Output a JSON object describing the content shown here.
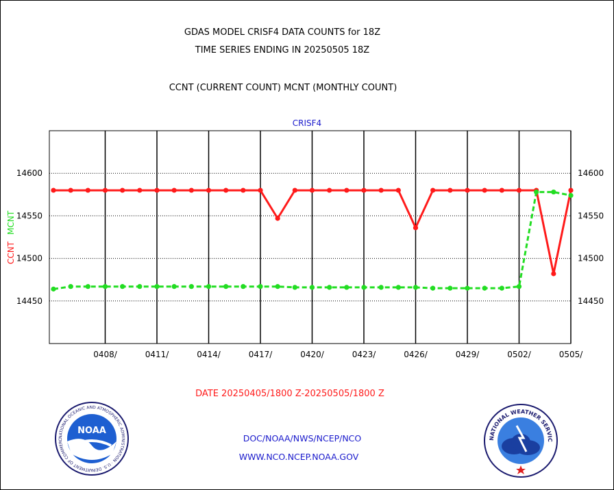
{
  "chart_data": {
    "type": "line",
    "title_lines": [
      "GDAS MODEL CRISF4 DATA COUNTS for 18Z",
      "TIME SERIES ENDING IN 20250505 18Z",
      "CCNT (CURRENT COUNT) MCNT (MONTHLY COUNT)"
    ],
    "panel_label": "CRISF4",
    "ylabel_ccnt": "CCNT",
    "ylabel_mcnt": "MCNT",
    "xlabel": "DATE 20250405/1800 Z-20250505/1800 Z",
    "ylim": [
      14400,
      14650
    ],
    "y_ticks": [
      14450,
      14500,
      14550,
      14600
    ],
    "x_tick_labels": [
      "0408/",
      "0411/",
      "0414/",
      "0417/",
      "0420/",
      "0423/",
      "0426/",
      "0429/",
      "0502/",
      "0505/"
    ],
    "x_tick_days": [
      3,
      6,
      9,
      12,
      15,
      18,
      21,
      24,
      27,
      30
    ],
    "grid": true,
    "colors": {
      "ccnt": "#ff1a1a",
      "mcnt": "#22dd22",
      "grid": "#000000",
      "footer": "#1a1acc"
    },
    "series": [
      {
        "name": "CCNT",
        "style": "solid",
        "x": [
          0,
          1,
          2,
          3,
          4,
          5,
          6,
          7,
          8,
          9,
          10,
          11,
          12,
          13,
          14,
          15,
          16,
          17,
          18,
          19,
          20,
          21,
          22,
          23,
          24,
          25,
          26,
          27,
          28,
          29,
          30
        ],
        "values": [
          14580,
          14580,
          14580,
          14580,
          14580,
          14580,
          14580,
          14580,
          14580,
          14580,
          14580,
          14580,
          14580,
          14547,
          14580,
          14580,
          14580,
          14580,
          14580,
          14580,
          14580,
          14536,
          14580,
          14580,
          14580,
          14580,
          14580,
          14580,
          14580,
          14482,
          14580
        ]
      },
      {
        "name": "MCNT",
        "style": "dashed",
        "x": [
          0,
          1,
          2,
          3,
          4,
          5,
          6,
          7,
          8,
          9,
          10,
          11,
          12,
          13,
          14,
          15,
          16,
          17,
          18,
          19,
          20,
          21,
          22,
          23,
          24,
          25,
          26,
          27,
          28,
          29,
          30
        ],
        "values": [
          14464,
          14467,
          14467,
          14467,
          14467,
          14467,
          14467,
          14467,
          14467,
          14467,
          14467,
          14467,
          14467,
          14467,
          14466,
          14466,
          14466,
          14466,
          14466,
          14466,
          14466,
          14466,
          14465,
          14465,
          14465,
          14465,
          14465,
          14467,
          14578,
          14578,
          14574
        ]
      }
    ]
  },
  "footer": {
    "line1": "DOC/NOAA/NWS/NCEP/NCO",
    "line2": "WWW.NCO.NCEP.NOAA.GOV"
  },
  "logos": {
    "noaa": "NOAA",
    "noaa_ring_text": "NATIONAL OCEANIC AND ATMOSPHERIC ADMINISTRATION · U.S. DEPARTMENT OF COMMERCE ·",
    "nws_ring_text": "NATIONAL WEATHER SERVICE"
  }
}
